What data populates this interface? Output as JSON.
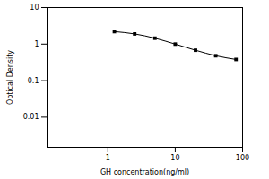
{
  "chart_data": {
    "type": "line",
    "x_label": "GH concentration(ng/ml)",
    "y_label": "Optical Density",
    "x": [
      1.25,
      2.5,
      5,
      10,
      20,
      40,
      80
    ],
    "values": [
      2.2,
      1.9,
      1.45,
      1.0,
      0.68,
      0.48,
      0.38
    ],
    "color": "#000000",
    "marker": "square",
    "log": true,
    "xlim": [
      0.125,
      100
    ],
    "xticks": [
      1,
      10,
      100
    ],
    "ylim": [
      0.0015,
      10
    ],
    "yticks": [
      0.01,
      0.1,
      1,
      10
    ],
    "grid": false
  }
}
